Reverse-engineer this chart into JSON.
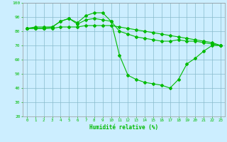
{
  "xlabel": "Humidité relative (%)",
  "xlim": [
    -0.5,
    23.5
  ],
  "ylim": [
    20,
    100
  ],
  "yticks": [
    20,
    30,
    40,
    50,
    60,
    70,
    80,
    90,
    100
  ],
  "xticks": [
    0,
    1,
    2,
    3,
    4,
    5,
    6,
    7,
    8,
    9,
    10,
    11,
    12,
    13,
    14,
    15,
    16,
    17,
    18,
    19,
    20,
    21,
    22,
    23
  ],
  "bg_color": "#cceeff",
  "grid_color": "#88bbcc",
  "line_color": "#00bb00",
  "line1_x": [
    0,
    1,
    2,
    3,
    4,
    5,
    6,
    7,
    8,
    9,
    10,
    11,
    12,
    13,
    14,
    15,
    16,
    17,
    18,
    19,
    20,
    21,
    22,
    23
  ],
  "line1_y": [
    82,
    83,
    83,
    83,
    87,
    89,
    86,
    91,
    93,
    93,
    87,
    63,
    49,
    46,
    44,
    43,
    42,
    40,
    46,
    57,
    61,
    66,
    70,
    70
  ],
  "line2_x": [
    0,
    1,
    2,
    3,
    4,
    5,
    6,
    7,
    8,
    9,
    10,
    11,
    12,
    13,
    14,
    15,
    16,
    17,
    18,
    19,
    20,
    21,
    22,
    23
  ],
  "line2_y": [
    82,
    82,
    82,
    83,
    87,
    89,
    85,
    88,
    89,
    88,
    87,
    80,
    78,
    76,
    75,
    74,
    73,
    73,
    74,
    73,
    73,
    72,
    71,
    70
  ],
  "line3_x": [
    0,
    1,
    2,
    3,
    4,
    5,
    6,
    7,
    8,
    9,
    10,
    11,
    12,
    13,
    14,
    15,
    16,
    17,
    18,
    19,
    20,
    21,
    22,
    23
  ],
  "line3_y": [
    82,
    82,
    82,
    82,
    83,
    83,
    83,
    84,
    84,
    84,
    84,
    83,
    82,
    81,
    80,
    79,
    78,
    77,
    76,
    75,
    74,
    73,
    72,
    70
  ]
}
